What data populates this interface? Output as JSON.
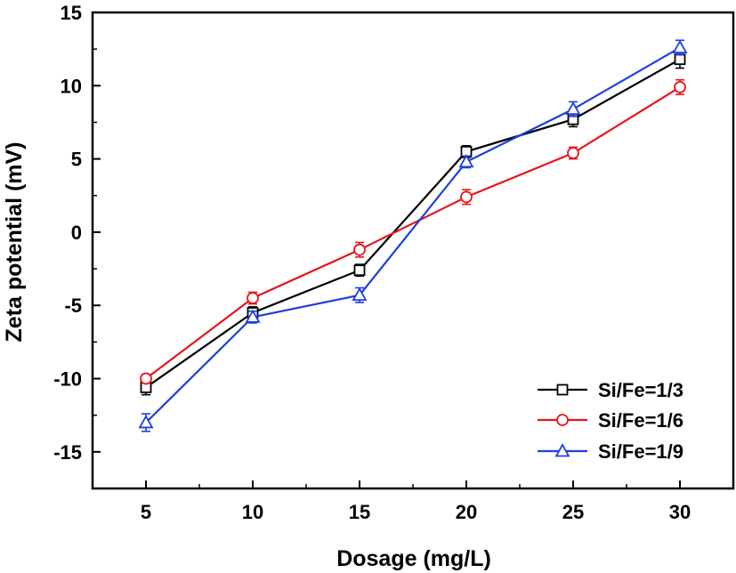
{
  "chart_data": {
    "type": "line",
    "title": "",
    "xlabel": "Dosage (mg/L)",
    "ylabel": "Zeta potential (mV)",
    "xlim": [
      2.5,
      32.5
    ],
    "ylim": [
      -17.5,
      15
    ],
    "xticks": [
      5,
      10,
      15,
      20,
      25,
      30
    ],
    "yticks": [
      -15,
      -10,
      -5,
      0,
      5,
      10,
      15
    ],
    "grid": false,
    "legend_position": "bottom-right",
    "x": [
      5,
      10,
      15,
      20,
      25,
      30
    ],
    "series": [
      {
        "name": "Si/Fe=1/3",
        "color": "#000000",
        "marker": "square",
        "values": [
          -10.6,
          -5.5,
          -2.6,
          5.5,
          7.7,
          11.8
        ],
        "errors": [
          0.5,
          0.4,
          0.4,
          0.4,
          0.5,
          0.6
        ]
      },
      {
        "name": "Si/Fe=1/6",
        "color": "#e8141c",
        "marker": "circle",
        "values": [
          -10.0,
          -4.5,
          -1.2,
          2.4,
          5.4,
          9.9
        ],
        "errors": [
          0.3,
          0.4,
          0.5,
          0.5,
          0.4,
          0.5
        ]
      },
      {
        "name": "Si/Fe=1/9",
        "color": "#1f3fe0",
        "marker": "triangle",
        "values": [
          -13.0,
          -5.8,
          -4.3,
          4.8,
          8.4,
          12.6
        ],
        "errors": [
          0.6,
          0.4,
          0.5,
          0.4,
          0.5,
          0.5
        ]
      }
    ]
  }
}
